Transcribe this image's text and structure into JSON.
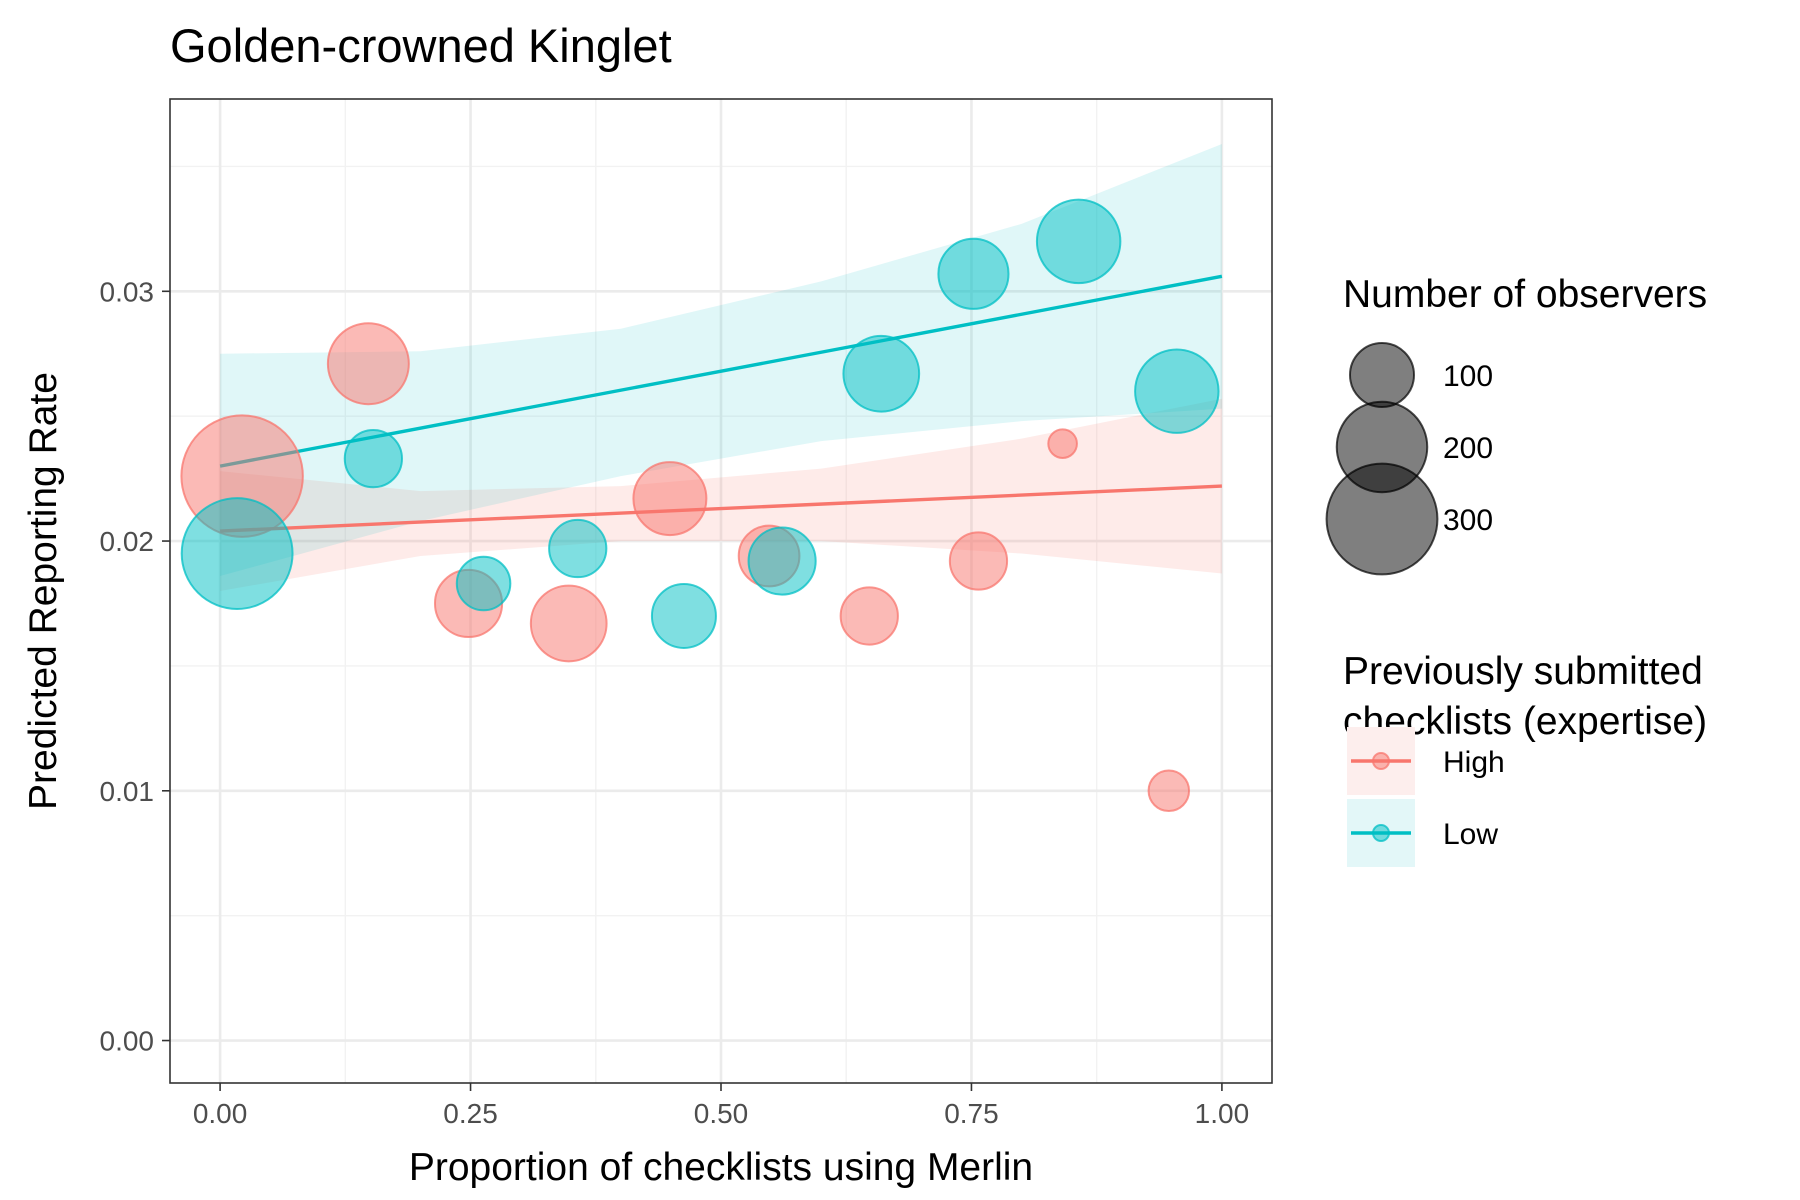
{
  "chart_data": {
    "type": "scatter",
    "title": "Golden-crowned Kinglet",
    "xlabel": "Proportion of checklists using Merlin",
    "ylabel": "Predicted Reporting Rate",
    "xlim": [
      -0.05,
      1.05
    ],
    "ylim": [
      -0.0017,
      0.0377
    ],
    "x_ticks": [
      0,
      0.25,
      0.5,
      0.75,
      1
    ],
    "x_tick_labels": [
      "0.00",
      "0.25",
      "0.50",
      "0.75",
      "1.00"
    ],
    "y_ticks": [
      0,
      0.01,
      0.02,
      0.03
    ],
    "y_tick_labels": [
      "0.00",
      "0.01",
      "0.02",
      "0.03"
    ],
    "grid": true,
    "legend_position": "right",
    "size_legend": {
      "title": "Number of observers",
      "values": [
        100,
        200,
        300
      ],
      "labels": [
        "100",
        "200",
        "300"
      ]
    },
    "color_legend": {
      "title_lines": [
        "Previously submitted",
        "checklists (expertise)"
      ]
    },
    "series": [
      {
        "name": "High",
        "color": "#F8766D",
        "trend": {
          "x": [
            0,
            1
          ],
          "y": [
            0.0204,
            0.0222
          ]
        },
        "ribbon": {
          "x": [
            0,
            0.2,
            0.4,
            0.6,
            0.8,
            1.0
          ],
          "lower": [
            0.018,
            0.0194,
            0.02,
            0.02,
            0.0195,
            0.0187
          ],
          "upper": [
            0.0228,
            0.022,
            0.0222,
            0.0229,
            0.0241,
            0.0257
          ]
        },
        "points": [
          {
            "x": 0.022,
            "y": 0.0226,
            "n": 360
          },
          {
            "x": 0.148,
            "y": 0.0271,
            "n": 160
          },
          {
            "x": 0.248,
            "y": 0.0175,
            "n": 110
          },
          {
            "x": 0.348,
            "y": 0.0167,
            "n": 140
          },
          {
            "x": 0.449,
            "y": 0.0217,
            "n": 130
          },
          {
            "x": 0.548,
            "y": 0.0194,
            "n": 90
          },
          {
            "x": 0.648,
            "y": 0.017,
            "n": 80
          },
          {
            "x": 0.757,
            "y": 0.0192,
            "n": 80
          },
          {
            "x": 0.841,
            "y": 0.0239,
            "n": 20
          },
          {
            "x": 0.947,
            "y": 0.01,
            "n": 40
          }
        ]
      },
      {
        "name": "Low",
        "color": "#00BFC4",
        "trend": {
          "x": [
            0,
            1
          ],
          "y": [
            0.023,
            0.0306
          ]
        },
        "ribbon": {
          "x": [
            0,
            0.2,
            0.4,
            0.6,
            0.8,
            1.0
          ],
          "lower": [
            0.0186,
            0.0208,
            0.0226,
            0.024,
            0.0248,
            0.0253
          ],
          "upper": [
            0.0275,
            0.0276,
            0.0285,
            0.0304,
            0.0327,
            0.0359
          ]
        },
        "points": [
          {
            "x": 0.017,
            "y": 0.0195,
            "n": 300
          },
          {
            "x": 0.153,
            "y": 0.0233,
            "n": 80
          },
          {
            "x": 0.263,
            "y": 0.0183,
            "n": 70
          },
          {
            "x": 0.357,
            "y": 0.0197,
            "n": 80
          },
          {
            "x": 0.463,
            "y": 0.017,
            "n": 100
          },
          {
            "x": 0.561,
            "y": 0.0192,
            "n": 110
          },
          {
            "x": 0.66,
            "y": 0.0267,
            "n": 140
          },
          {
            "x": 0.752,
            "y": 0.0307,
            "n": 120
          },
          {
            "x": 0.857,
            "y": 0.032,
            "n": 170
          },
          {
            "x": 0.955,
            "y": 0.026,
            "n": 170
          }
        ]
      }
    ]
  }
}
